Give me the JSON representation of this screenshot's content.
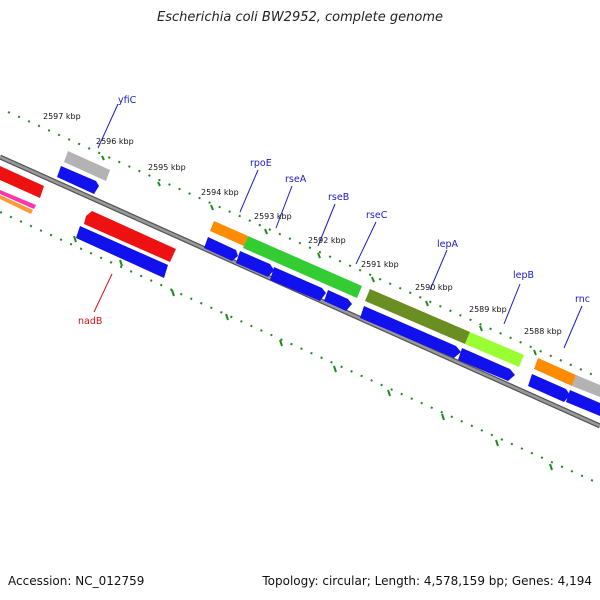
{
  "title": "Escherichia coli BW2952, complete genome",
  "footer": {
    "accession": "Accession: NC_012759",
    "info": "Topology: circular; Length: 4,578,159 bp; Genes: 4,194"
  },
  "colors": {
    "backbone": "#7f7f7f",
    "ticks": "#1d8a1d",
    "label_blue": "#1a1acc",
    "label_red": "#dd1111",
    "cds_blue": "#1111ee",
    "red": "#ee1111",
    "gray": "#b0b0b0",
    "orange": "#ff8c00",
    "green": "#33cc33",
    "olive": "#6b8e23",
    "lime": "#99ff33"
  },
  "ticks": [
    {
      "label": "2597 kbp"
    },
    {
      "label": "2596 kbp"
    },
    {
      "label": "2595 kbp"
    },
    {
      "label": "2594 kbp"
    },
    {
      "label": "2593 kbp"
    },
    {
      "label": "2592 kbp"
    },
    {
      "label": "2591 kbp"
    },
    {
      "label": "2590 kbp"
    },
    {
      "label": "2589 kbp"
    },
    {
      "label": "2588 kbp"
    }
  ],
  "gene_labels": [
    {
      "name": "yfiC"
    },
    {
      "name": "rpoE"
    },
    {
      "name": "rseA"
    },
    {
      "name": "rseB"
    },
    {
      "name": "rseC"
    },
    {
      "name": "lepA"
    },
    {
      "name": "lepB"
    },
    {
      "name": "rnc"
    },
    {
      "name": "nadB"
    }
  ]
}
